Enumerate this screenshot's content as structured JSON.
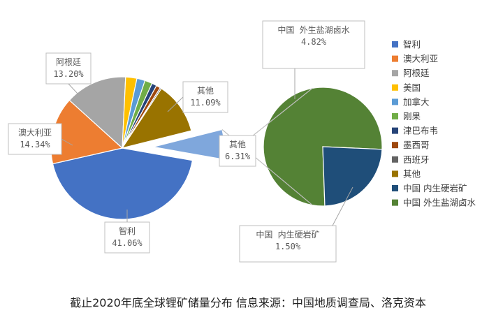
{
  "caption": "截止2020年底全球锂矿储量分布 信息来源：中国地质调查局、洛克资本",
  "chart_data": [
    {
      "type": "pie",
      "categories": [
        "智利",
        "澳大利亚",
        "阿根廷",
        "美国",
        "加拿大",
        "刚果",
        "津巴布韦",
        "墨西哥",
        "西班牙",
        "其他",
        "其他"
      ],
      "values": [
        41.06,
        14.34,
        13.2,
        2.4,
        1.75,
        1.6,
        1.05,
        0.9,
        0.3,
        11.09,
        6.31
      ],
      "colors": [
        "#4472C4",
        "#ED7D31",
        "#A5A5A5",
        "#FFC000",
        "#5B9BD5",
        "#70AD47",
        "#264478",
        "#9E480E",
        "#636363",
        "#997300",
        "#7FA7DC"
      ],
      "labels": [
        {
          "lines": [
            "智利",
            "41.06%"
          ]
        },
        {
          "lines": [
            "澳大利亚",
            "14.34%"
          ]
        },
        {
          "lines": [
            "阿根廷",
            "13.20%"
          ]
        },
        null,
        null,
        null,
        null,
        null,
        null,
        {
          "lines": [
            "其他",
            "11.09%"
          ]
        },
        {
          "lines": [
            "其他",
            "6.31%"
          ]
        }
      ]
    },
    {
      "type": "pie",
      "categories": [
        "中国 外生盐湖卤水",
        "中国 内生硬岩矿"
      ],
      "values": [
        4.82,
        1.5
      ],
      "colors": [
        "#548235",
        "#1F4E79"
      ],
      "labels": [
        {
          "lines": [
            "中国  外生盐湖卤水",
            "4.82%"
          ]
        },
        {
          "lines": [
            "中国  内生硬岩矿",
            "1.50%"
          ]
        }
      ]
    }
  ],
  "legend": [
    {
      "name": "智利",
      "color": "#4472C4"
    },
    {
      "name": "澳大利亚",
      "color": "#ED7D31"
    },
    {
      "name": "阿根廷",
      "color": "#A5A5A5"
    },
    {
      "name": "美国",
      "color": "#FFC000"
    },
    {
      "name": "加拿大",
      "color": "#5B9BD5"
    },
    {
      "name": "刚果",
      "color": "#70AD47"
    },
    {
      "name": "津巴布韦",
      "color": "#264478"
    },
    {
      "name": "墨西哥",
      "color": "#9E480E"
    },
    {
      "name": "西班牙",
      "color": "#636363"
    },
    {
      "name": "其他",
      "color": "#997300"
    },
    {
      "name": "中国  内生硬岩矿",
      "color": "#1F4E79"
    },
    {
      "name": "中国  外生盐湖卤水",
      "color": "#548235"
    }
  ]
}
